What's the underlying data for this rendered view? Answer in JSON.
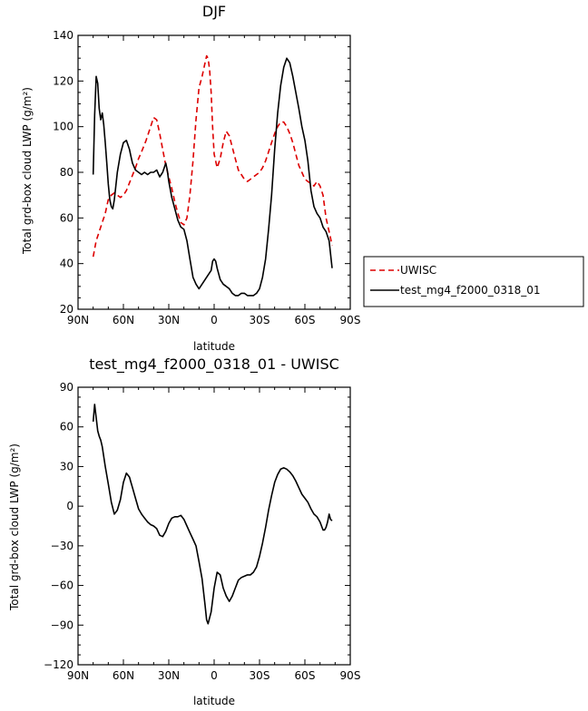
{
  "chart_data": [
    {
      "type": "line",
      "title": "DJF",
      "xlabel": "latitude",
      "ylabel": "Total grd-box cloud LWP (g/m²)",
      "xlim": [
        90,
        -90
      ],
      "ylim": [
        20,
        140
      ],
      "xticks": [
        90,
        60,
        30,
        0,
        -30,
        -60,
        -90
      ],
      "xtick_labels": [
        "90N",
        "60N",
        "30N",
        "0",
        "30S",
        "60S",
        "90S"
      ],
      "yticks": [
        20,
        40,
        60,
        80,
        100,
        120,
        140
      ],
      "ytick_labels": [
        "20",
        "40",
        "60",
        "80",
        "100",
        "120",
        "140"
      ],
      "legend_position": "right",
      "series": [
        {
          "name": "UWISC",
          "color": "#dd0000",
          "dash": "dashed",
          "x": [
            80,
            78,
            75,
            72,
            70,
            68,
            66,
            64,
            62,
            60,
            58,
            55,
            52,
            50,
            48,
            45,
            42,
            40,
            38,
            36,
            34,
            32,
            30,
            28,
            26,
            24,
            22,
            20,
            18,
            16,
            14,
            12,
            10,
            8,
            6,
            5,
            4,
            3,
            2,
            1,
            0,
            -2,
            -4,
            -6,
            -8,
            -10,
            -12,
            -14,
            -16,
            -18,
            -20,
            -22,
            -24,
            -26,
            -28,
            -30,
            -32,
            -34,
            -36,
            -38,
            -40,
            -42,
            -44,
            -46,
            -48,
            -50,
            -52,
            -54,
            -56,
            -58,
            -60,
            -62,
            -64,
            -66,
            -68,
            -70,
            -72,
            -74,
            -76,
            -78
          ],
          "y": [
            43,
            50,
            56,
            62,
            68,
            70,
            71,
            70,
            69,
            70,
            72,
            77,
            82,
            86,
            89,
            94,
            100,
            104,
            103,
            97,
            90,
            83,
            78,
            73,
            67,
            62,
            58,
            57,
            60,
            70,
            85,
            103,
            117,
            122,
            128,
            131,
            130,
            125,
            115,
            100,
            88,
            82,
            86,
            93,
            98,
            96,
            91,
            86,
            81,
            79,
            77,
            76,
            77,
            78,
            79,
            80,
            82,
            85,
            89,
            93,
            97,
            100,
            102,
            102,
            100,
            97,
            93,
            88,
            83,
            80,
            77,
            76,
            75,
            74,
            76,
            74,
            70,
            60,
            54,
            48
          ]
        },
        {
          "name": "test_mg4_f2000_0318_01",
          "color": "#000000",
          "dash": "solid",
          "x": [
            80,
            79,
            78,
            77,
            76,
            75,
            74,
            73,
            72,
            71,
            70,
            69,
            68,
            67,
            66,
            64,
            62,
            60,
            58,
            57,
            56,
            55,
            54,
            52,
            50,
            48,
            46,
            44,
            42,
            40,
            38,
            36,
            34,
            32,
            31,
            30,
            28,
            26,
            24,
            22,
            20,
            18,
            16,
            14,
            12,
            10,
            8,
            6,
            4,
            2,
            1,
            0,
            -1,
            -2,
            -4,
            -6,
            -8,
            -10,
            -12,
            -14,
            -16,
            -18,
            -20,
            -22,
            -24,
            -26,
            -28,
            -30,
            -32,
            -34,
            -36,
            -38,
            -40,
            -42,
            -44,
            -46,
            -48,
            -50,
            -52,
            -54,
            -56,
            -58,
            -60,
            -62,
            -64,
            -66,
            -68,
            -70,
            -72,
            -74,
            -76,
            -78
          ],
          "y": [
            79,
            105,
            122,
            119,
            108,
            103,
            106,
            101,
            93,
            84,
            75,
            68,
            65,
            64,
            68,
            80,
            88,
            93,
            94,
            92,
            90,
            87,
            84,
            81,
            80,
            79,
            80,
            79,
            80,
            80,
            81,
            78,
            80,
            84,
            81,
            76,
            69,
            64,
            59,
            56,
            55,
            50,
            42,
            34,
            31,
            29,
            31,
            33,
            35,
            37,
            41,
            42,
            41,
            38,
            33,
            31,
            30,
            29,
            27,
            26,
            26,
            27,
            27,
            26,
            26,
            26,
            27,
            29,
            34,
            42,
            55,
            70,
            90,
            106,
            118,
            126,
            130,
            128,
            122,
            115,
            108,
            100,
            94,
            85,
            72,
            65,
            62,
            60,
            56,
            54,
            50,
            38
          ]
        }
      ]
    },
    {
      "type": "line",
      "title": "test_mg4_f2000_0318_01 - UWISC",
      "xlabel": "latitude",
      "ylabel": "Total grd-box cloud LWP (g/m²)",
      "xlim": [
        90,
        -90
      ],
      "ylim": [
        -120,
        90
      ],
      "xticks": [
        90,
        60,
        30,
        0,
        -30,
        -60,
        -90
      ],
      "xtick_labels": [
        "90N",
        "60N",
        "30N",
        "0",
        "30S",
        "60S",
        "90S"
      ],
      "yticks": [
        90,
        60,
        30,
        0,
        -30,
        -60,
        -90,
        -120
      ],
      "ytick_labels": [
        "90",
        "60",
        "30",
        "0",
        "−30",
        "−60",
        "−90",
        "−120"
      ],
      "series": [
        {
          "color": "#000000",
          "dash": "solid",
          "x": [
            80,
            79,
            78,
            77,
            76,
            75,
            74,
            72,
            70,
            68,
            66,
            64,
            62,
            60,
            58,
            56,
            55,
            54,
            52,
            50,
            48,
            46,
            44,
            42,
            40,
            38,
            36,
            34,
            32,
            30,
            28,
            26,
            24,
            22,
            20,
            18,
            16,
            14,
            12,
            10,
            8,
            6,
            5,
            4,
            2,
            0,
            -2,
            -4,
            -6,
            -8,
            -10,
            -12,
            -14,
            -16,
            -18,
            -20,
            -22,
            -24,
            -26,
            -28,
            -30,
            -32,
            -34,
            -36,
            -38,
            -40,
            -42,
            -44,
            -46,
            -48,
            -50,
            -52,
            -54,
            -56,
            -58,
            -60,
            -62,
            -64,
            -66,
            -68,
            -70,
            -72,
            -73,
            -74,
            -75,
            -76,
            -77,
            -78
          ],
          "y": [
            64,
            77,
            67,
            57,
            53,
            50,
            45,
            30,
            17,
            3,
            -6,
            -3,
            5,
            18,
            25,
            22,
            18,
            14,
            6,
            -2,
            -6,
            -9,
            -12,
            -14,
            -15,
            -17,
            -22,
            -23,
            -19,
            -13,
            -9,
            -8,
            -8,
            -7,
            -10,
            -15,
            -20,
            -25,
            -30,
            -42,
            -55,
            -75,
            -86,
            -89,
            -80,
            -62,
            -50,
            -52,
            -62,
            -68,
            -72,
            -68,
            -62,
            -56,
            -54,
            -53,
            -52,
            -52,
            -50,
            -46,
            -38,
            -28,
            -16,
            -3,
            8,
            18,
            24,
            28,
            29,
            28,
            26,
            23,
            19,
            14,
            9,
            6,
            3,
            -2,
            -6,
            -8,
            -12,
            -18,
            -18,
            -16,
            -12,
            -6,
            -10,
            -11
          ]
        }
      ]
    }
  ]
}
